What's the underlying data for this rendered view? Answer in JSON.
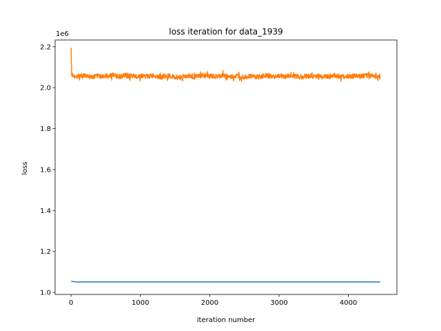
{
  "chart_data": {
    "type": "line",
    "title": "loss iteration for data_1939",
    "xlabel": "iteration number",
    "ylabel": "loss",
    "y_scale_text": "1e6",
    "xlim": [
      -230,
      4700
    ],
    "ylim": [
      0.99,
      2.233
    ],
    "x_ticks": [
      0,
      1000,
      2000,
      3000,
      4000
    ],
    "x_tick_labels": [
      "0",
      "1000",
      "2000",
      "3000",
      "4000"
    ],
    "y_ticks": [
      1.0,
      1.2,
      1.4,
      1.6,
      1.8,
      2.0,
      2.2
    ],
    "y_tick_labels": [
      "1.0",
      "1.2",
      "1.4",
      "1.6",
      "1.8",
      "2.0",
      "2.2"
    ],
    "grid": false,
    "legend": "none",
    "series": [
      {
        "color": "#1f77b4",
        "x": [
          0,
          50,
          100,
          500,
          1000,
          1500,
          2000,
          2500,
          3000,
          3500,
          4000,
          4460
        ],
        "y": [
          1.055,
          1.052,
          1.051,
          1.051,
          1.051,
          1.051,
          1.051,
          1.051,
          1.051,
          1.051,
          1.051,
          1.051
        ]
      },
      {
        "color": "#ff7f0e",
        "x": [
          0,
          5,
          10,
          20,
          30,
          50,
          100,
          200,
          300,
          400,
          500,
          600,
          700,
          800,
          900,
          1000,
          1100,
          1200,
          1300,
          1400,
          1500,
          1600,
          1700,
          1800,
          1900,
          2000,
          2100,
          2200,
          2300,
          2400,
          2500,
          2600,
          2700,
          2800,
          2900,
          3000,
          3100,
          3200,
          3300,
          3400,
          3500,
          3600,
          3700,
          3800,
          3900,
          4000,
          4100,
          4200,
          4300,
          4400,
          4460
        ],
        "y": [
          2.195,
          2.12,
          2.06,
          2.065,
          2.05,
          2.058,
          2.055,
          2.06,
          2.052,
          2.058,
          2.056,
          2.062,
          2.055,
          2.06,
          2.054,
          2.058,
          2.055,
          2.06,
          2.052,
          2.057,
          2.05,
          2.055,
          2.058,
          2.053,
          2.06,
          2.056,
          2.054,
          2.06,
          2.052,
          2.058,
          2.055,
          2.057,
          2.052,
          2.06,
          2.054,
          2.058,
          2.055,
          2.06,
          2.052,
          2.057,
          2.056,
          2.058,
          2.054,
          2.06,
          2.052,
          2.056,
          2.058,
          2.055,
          2.06,
          2.057,
          2.055
        ],
        "band": [
          0.012,
          0.025
        ]
      }
    ]
  }
}
